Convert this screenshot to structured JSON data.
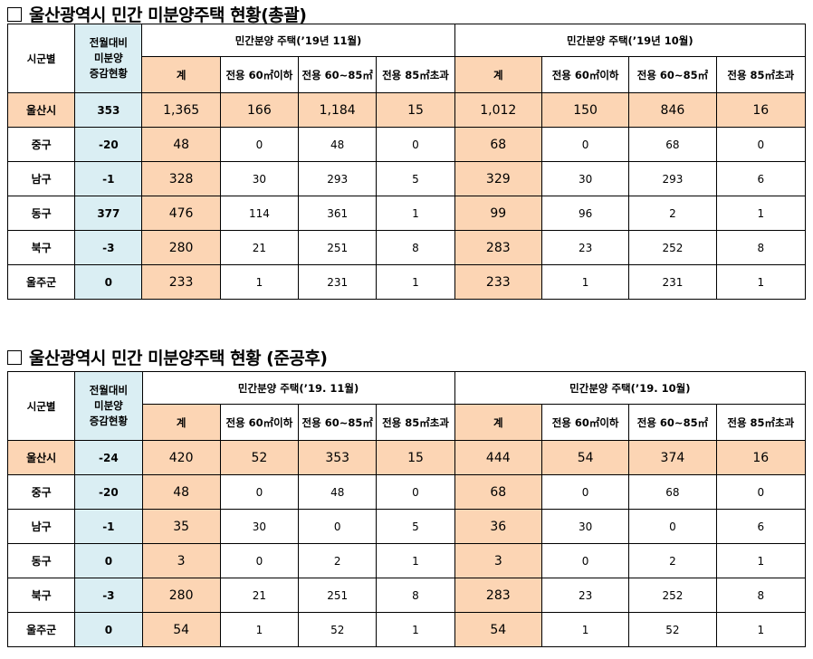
{
  "sections": [
    {
      "title": "울산광역시 민간 미분양주택 현황(총괄)",
      "col_region": "시군별",
      "col_diff": [
        "전월대비",
        "미분양",
        "증감현황"
      ],
      "period_a": "민간분양 주택(’19년 11월)",
      "period_b": "민간분양 주택(’19년 10월)",
      "sub_cols": [
        "계",
        "전용 60㎡이하",
        "전용 60~85㎡",
        "전용 85㎡초과"
      ],
      "rows": [
        {
          "region": "울산시",
          "diff": "353",
          "a": [
            "1,365",
            "166",
            "1,184",
            "15"
          ],
          "b": [
            "1,012",
            "150",
            "846",
            "16"
          ]
        },
        {
          "region": "중구",
          "diff": "-20",
          "a": [
            "48",
            "0",
            "48",
            "0"
          ],
          "b": [
            "68",
            "0",
            "68",
            "0"
          ]
        },
        {
          "region": "남구",
          "diff": "-1",
          "a": [
            "328",
            "30",
            "293",
            "5"
          ],
          "b": [
            "329",
            "30",
            "293",
            "6"
          ]
        },
        {
          "region": "동구",
          "diff": "377",
          "a": [
            "476",
            "114",
            "361",
            "1"
          ],
          "b": [
            "99",
            "96",
            "2",
            "1"
          ]
        },
        {
          "region": "북구",
          "diff": "-3",
          "a": [
            "280",
            "21",
            "251",
            "8"
          ],
          "b": [
            "283",
            "23",
            "252",
            "8"
          ]
        },
        {
          "region": "울주군",
          "diff": "0",
          "a": [
            "233",
            "1",
            "231",
            "1"
          ],
          "b": [
            "233",
            "1",
            "231",
            "1"
          ]
        }
      ]
    },
    {
      "title": "울산광역시 민간 미분양주택 현황 (준공후)",
      "col_region": "시군별",
      "col_diff": [
        "전월대비",
        "미분양",
        "증감현황"
      ],
      "period_a": "민간분양 주택(’19. 11월)",
      "period_b": "민간분양 주택(’19. 10월)",
      "sub_cols": [
        "계",
        "전용 60㎡이하",
        "전용 60~85㎡",
        "전용 85㎡초과"
      ],
      "rows": [
        {
          "region": "울산시",
          "diff": "-24",
          "a": [
            "420",
            "52",
            "353",
            "15"
          ],
          "b": [
            "444",
            "54",
            "374",
            "16"
          ]
        },
        {
          "region": "중구",
          "diff": "-20",
          "a": [
            "48",
            "0",
            "48",
            "0"
          ],
          "b": [
            "68",
            "0",
            "68",
            "0"
          ]
        },
        {
          "region": "남구",
          "diff": "-1",
          "a": [
            "35",
            "30",
            "0",
            "5"
          ],
          "b": [
            "36",
            "30",
            "0",
            "6"
          ]
        },
        {
          "region": "동구",
          "diff": "0",
          "a": [
            "3",
            "0",
            "2",
            "1"
          ],
          "b": [
            "3",
            "0",
            "2",
            "1"
          ]
        },
        {
          "region": "북구",
          "diff": "-3",
          "a": [
            "280",
            "21",
            "251",
            "8"
          ],
          "b": [
            "283",
            "23",
            "252",
            "8"
          ]
        },
        {
          "region": "울주군",
          "diff": "0",
          "a": [
            "54",
            "1",
            "52",
            "1"
          ],
          "b": [
            "54",
            "1",
            "52",
            "1"
          ]
        }
      ]
    }
  ]
}
